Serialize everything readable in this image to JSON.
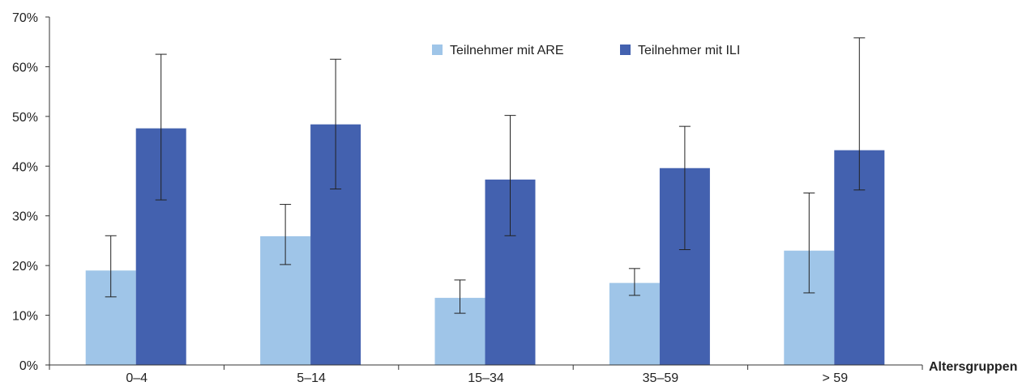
{
  "chart_data": {
    "type": "bar",
    "categories": [
      "0–4",
      "5–14",
      "15–34",
      "35–59",
      "> 59"
    ],
    "xlabel": "Altersgruppen",
    "ylabel": "",
    "ylim": [
      0,
      70
    ],
    "yticks": [
      0,
      10,
      20,
      30,
      40,
      50,
      60,
      70
    ],
    "ytick_labels": [
      "0%",
      "10%",
      "20%",
      "30%",
      "40%",
      "50%",
      "60%",
      "70%"
    ],
    "legend_position": "top-center",
    "grid": false,
    "series": [
      {
        "name": "Teilnehmer mit ARE",
        "color": "#9fc5e8",
        "values": [
          19,
          25.9,
          13.5,
          16.5,
          23
        ],
        "error_low": [
          13.7,
          20.2,
          10.4,
          14,
          14.5
        ],
        "error_high": [
          26,
          32.3,
          17.1,
          19.4,
          34.6
        ]
      },
      {
        "name": "Teilnehmer mit ILI",
        "color": "#4361af",
        "values": [
          47.6,
          48.4,
          37.3,
          39.6,
          43.2
        ],
        "error_low": [
          33.2,
          35.4,
          26,
          23.2,
          35.2
        ],
        "error_high": [
          62.5,
          61.5,
          50.2,
          48,
          65.8
        ]
      }
    ]
  }
}
